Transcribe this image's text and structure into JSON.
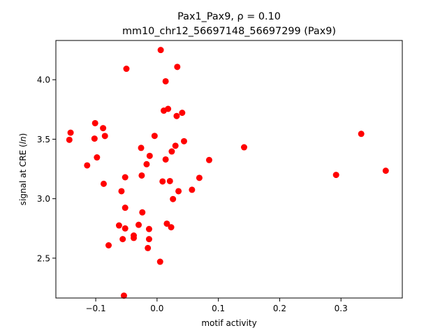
{
  "chart_data": {
    "type": "scatter",
    "title_line1": "Pax1_Pax9, ρ = 0.10",
    "title_line2": "mm10_chr12_56697148_56697299 (Pax9)",
    "xlabel": "motif activity",
    "ylabel": "signal at CRE (ln)",
    "xlim": [
      -0.165,
      0.4
    ],
    "ylim": [
      2.165,
      4.33
    ],
    "x_ticks": [
      -0.1,
      0.0,
      0.1,
      0.2,
      0.3
    ],
    "x_tick_labels": [
      "−0.1",
      "0.0",
      "0.1",
      "0.2",
      "0.3"
    ],
    "y_ticks": [
      2.5,
      3.0,
      3.5,
      4.0
    ],
    "y_tick_labels": [
      "2.5",
      "3.0",
      "3.5",
      "4.0"
    ],
    "grid": false,
    "marker_color": "#ff0000",
    "points": [
      {
        "x": -0.141,
        "y": 3.555
      },
      {
        "x": -0.143,
        "y": 3.495
      },
      {
        "x": -0.101,
        "y": 3.635
      },
      {
        "x": -0.102,
        "y": 3.505
      },
      {
        "x": -0.088,
        "y": 3.593
      },
      {
        "x": -0.085,
        "y": 3.527
      },
      {
        "x": -0.098,
        "y": 3.347
      },
      {
        "x": -0.114,
        "y": 3.28
      },
      {
        "x": -0.087,
        "y": 3.125
      },
      {
        "x": -0.05,
        "y": 4.092
      },
      {
        "x": -0.052,
        "y": 3.18
      },
      {
        "x": -0.058,
        "y": 3.063
      },
      {
        "x": -0.052,
        "y": 2.924
      },
      {
        "x": -0.062,
        "y": 2.775
      },
      {
        "x": -0.052,
        "y": 2.75
      },
      {
        "x": -0.038,
        "y": 2.69
      },
      {
        "x": -0.038,
        "y": 2.67
      },
      {
        "x": -0.056,
        "y": 2.66
      },
      {
        "x": -0.079,
        "y": 2.608
      },
      {
        "x": -0.054,
        "y": 2.185
      },
      {
        "x": -0.03,
        "y": 2.78
      },
      {
        "x": -0.024,
        "y": 2.885
      },
      {
        "x": -0.013,
        "y": 2.745
      },
      {
        "x": -0.013,
        "y": 2.66
      },
      {
        "x": -0.015,
        "y": 2.585
      },
      {
        "x": -0.025,
        "y": 3.195
      },
      {
        "x": -0.017,
        "y": 3.29
      },
      {
        "x": -0.012,
        "y": 3.36
      },
      {
        "x": -0.026,
        "y": 3.427
      },
      {
        "x": -0.004,
        "y": 3.528
      },
      {
        "x": 0.006,
        "y": 4.25
      },
      {
        "x": 0.014,
        "y": 3.987
      },
      {
        "x": 0.033,
        "y": 4.108
      },
      {
        "x": 0.011,
        "y": 3.74
      },
      {
        "x": 0.018,
        "y": 3.755
      },
      {
        "x": 0.032,
        "y": 3.695
      },
      {
        "x": 0.041,
        "y": 3.722
      },
      {
        "x": 0.044,
        "y": 3.483
      },
      {
        "x": 0.03,
        "y": 3.445
      },
      {
        "x": 0.024,
        "y": 3.397
      },
      {
        "x": 0.014,
        "y": 3.33
      },
      {
        "x": 0.009,
        "y": 3.145
      },
      {
        "x": 0.021,
        "y": 3.148
      },
      {
        "x": 0.035,
        "y": 3.063
      },
      {
        "x": 0.026,
        "y": 2.997
      },
      {
        "x": 0.016,
        "y": 2.79
      },
      {
        "x": 0.023,
        "y": 2.76
      },
      {
        "x": 0.005,
        "y": 2.47
      },
      {
        "x": 0.057,
        "y": 3.075
      },
      {
        "x": 0.069,
        "y": 3.175
      },
      {
        "x": 0.085,
        "y": 3.325
      },
      {
        "x": 0.142,
        "y": 3.432
      },
      {
        "x": 0.292,
        "y": 3.2
      },
      {
        "x": 0.333,
        "y": 3.545
      },
      {
        "x": 0.373,
        "y": 3.235
      }
    ]
  }
}
